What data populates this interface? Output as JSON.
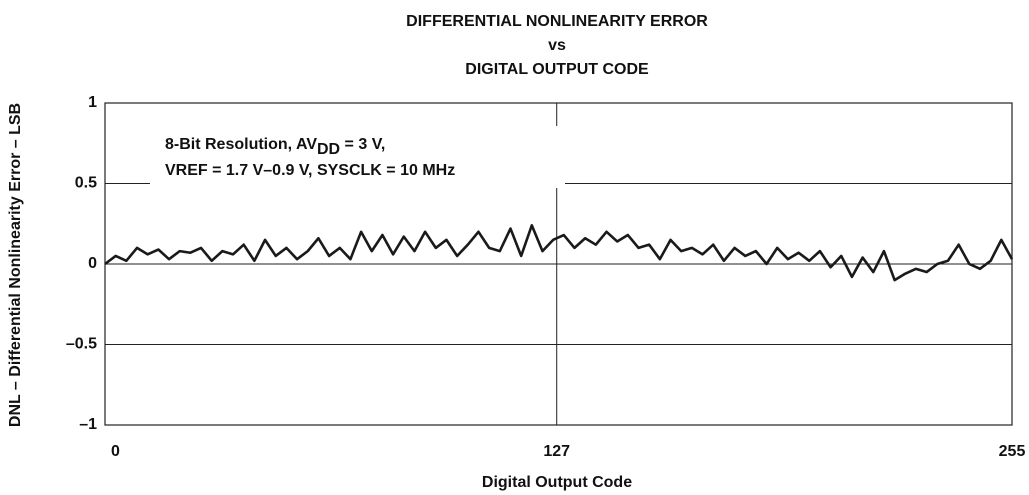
{
  "chart_data": {
    "type": "line",
    "title": [
      "DIFFERENTIAL NONLINEARITY ERROR",
      "vs",
      "DIGITAL OUTPUT CODE"
    ],
    "xlabel": "Digital Output Code",
    "ylabel": "DNL – Differential Nonlinearity Error – LSB",
    "annotation": {
      "line1": [
        "8-Bit Resolution, AV",
        "DD",
        " = 3 V,"
      ],
      "line2": "VREF = 1.7 V–0.9 V, SYSCLK = 10 MHz"
    },
    "x": [
      0,
      3,
      6,
      9,
      12,
      15,
      18,
      21,
      24,
      27,
      30,
      33,
      36,
      39,
      42,
      45,
      48,
      51,
      54,
      57,
      60,
      63,
      66,
      69,
      72,
      75,
      78,
      81,
      84,
      87,
      90,
      93,
      96,
      99,
      102,
      105,
      108,
      111,
      114,
      117,
      120,
      123,
      126,
      129,
      132,
      135,
      138,
      141,
      144,
      147,
      150,
      153,
      156,
      159,
      162,
      165,
      168,
      171,
      174,
      177,
      180,
      183,
      186,
      189,
      192,
      195,
      198,
      201,
      204,
      207,
      210,
      213,
      216,
      219,
      222,
      225,
      228,
      231,
      234,
      237,
      240,
      243,
      246,
      249,
      252,
      255
    ],
    "series": [
      {
        "name": "DNL",
        "color": "#1a1a1a",
        "values": [
          0,
          0.05,
          0.02,
          0.1,
          0.06,
          0.09,
          0.03,
          0.08,
          0.07,
          0.1,
          0.02,
          0.08,
          0.06,
          0.12,
          0.02,
          0.15,
          0.05,
          0.1,
          0.03,
          0.08,
          0.16,
          0.05,
          0.1,
          0.03,
          0.2,
          0.08,
          0.18,
          0.06,
          0.17,
          0.08,
          0.2,
          0.1,
          0.15,
          0.05,
          0.12,
          0.2,
          0.1,
          0.08,
          0.22,
          0.05,
          0.24,
          0.08,
          0.15,
          0.18,
          0.1,
          0.16,
          0.12,
          0.2,
          0.14,
          0.18,
          0.1,
          0.12,
          0.03,
          0.15,
          0.08,
          0.1,
          0.06,
          0.12,
          0.02,
          0.1,
          0.05,
          0.08,
          0.0,
          0.1,
          0.03,
          0.07,
          0.02,
          0.08,
          -0.02,
          0.05,
          -0.08,
          0.04,
          -0.05,
          0.08,
          -0.1,
          -0.06,
          -0.03,
          -0.05,
          0.0,
          0.02,
          0.12,
          0.0,
          -0.03,
          0.02,
          0.15,
          0.03
        ]
      }
    ],
    "xlim": [
      0,
      255
    ],
    "xticks": [
      0,
      127,
      255
    ],
    "ylim": [
      -1,
      1
    ],
    "yticks": [
      {
        "value": -1,
        "label": "–1"
      },
      {
        "value": -0.5,
        "label": "–0.5"
      },
      0,
      0.5,
      1
    ],
    "grid": true
  }
}
